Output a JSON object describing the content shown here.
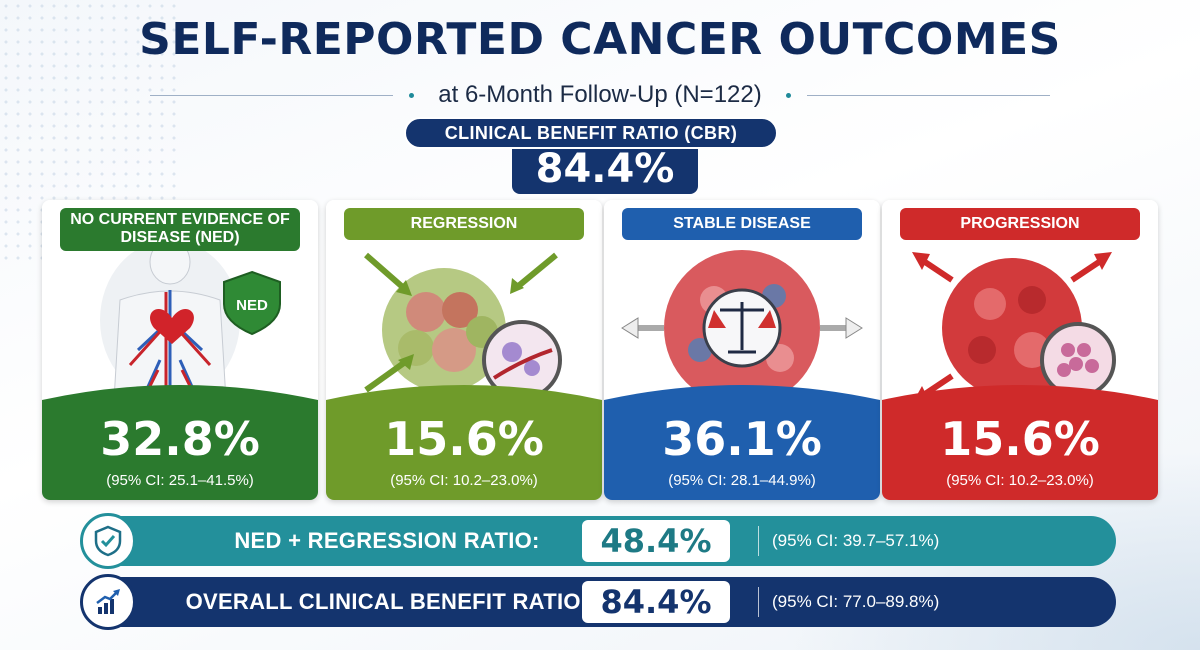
{
  "title": "SELF-REPORTED CANCER OUTCOMES",
  "subtitle": "at 6-Month Follow-Up (N=122)",
  "cbr": {
    "label": "CLINICAL BENEFIT RATIO (CBR)",
    "value": "84.4%"
  },
  "cards": [
    {
      "label": "NO CURRENT EVIDENCE OF DISEASE (NED)",
      "badge": "NED",
      "value": "32.8%",
      "ci": "(95% CI: 25.1–41.5%)",
      "color": "#2b7a2e",
      "icon": "human-body-icon"
    },
    {
      "label": "REGRESSION",
      "value": "15.6%",
      "ci": "(95% CI: 10.2–23.0%)",
      "color": "#6f9b2a",
      "icon": "shrinking-tumor-icon"
    },
    {
      "label": "STABLE DISEASE",
      "value": "36.1%",
      "ci": "(95% CI: 28.1–44.9%)",
      "color": "#1f5fae",
      "icon": "balance-scale-icon"
    },
    {
      "label": "PROGRESSION",
      "value": "15.6%",
      "ci": "(95% CI: 10.2–23.0%)",
      "color": "#cf2a2a",
      "icon": "growing-tumor-icon"
    }
  ],
  "bars": [
    {
      "label": "NED + REGRESSION RATIO:",
      "value": "48.4%",
      "ci": "(95% CI: 39.7–57.1%)",
      "color": "#23909b",
      "icon": "shield-check-icon"
    },
    {
      "label": "OVERALL CLINICAL BENEFIT RATIO:",
      "value": "84.4%",
      "ci": "(95% CI: 77.0–89.8%)",
      "color": "#14346e",
      "icon": "trend-chart-icon"
    }
  ]
}
